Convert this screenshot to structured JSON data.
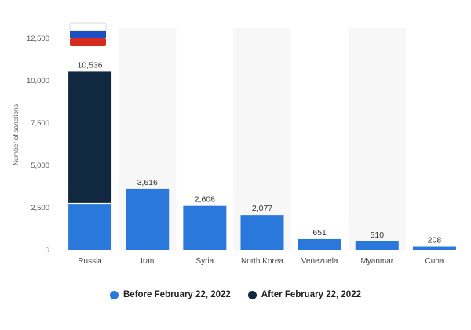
{
  "chart_data": {
    "type": "bar",
    "stacked": true,
    "categories": [
      "Russia",
      "Iran",
      "Syria",
      "North Korea",
      "Venezuela",
      "Myanmar",
      "Cuba"
    ],
    "series": [
      {
        "name": "Before February 22, 2022",
        "color": "#2a78dc",
        "values": [
          2754,
          3616,
          2608,
          2077,
          651,
          510,
          208
        ]
      },
      {
        "name": "After February 22, 2022",
        "color": "#112841",
        "values": [
          7782,
          0,
          0,
          0,
          0,
          0,
          0
        ]
      }
    ],
    "totals": [
      "10,536",
      "3,616",
      "2,608",
      "2,077",
      "651",
      "510",
      "208"
    ],
    "ylabel": "Number of sanctions",
    "yticks": [
      "0",
      "2,500",
      "5,000",
      "7,500",
      "10,000",
      "12,500"
    ],
    "ytick_values": [
      0,
      2500,
      5000,
      7500,
      10000,
      12500
    ],
    "ylim": [
      0,
      12500
    ],
    "grid": false,
    "legend_position": "bottom",
    "annotation_icon": "russia-flag-icon"
  }
}
